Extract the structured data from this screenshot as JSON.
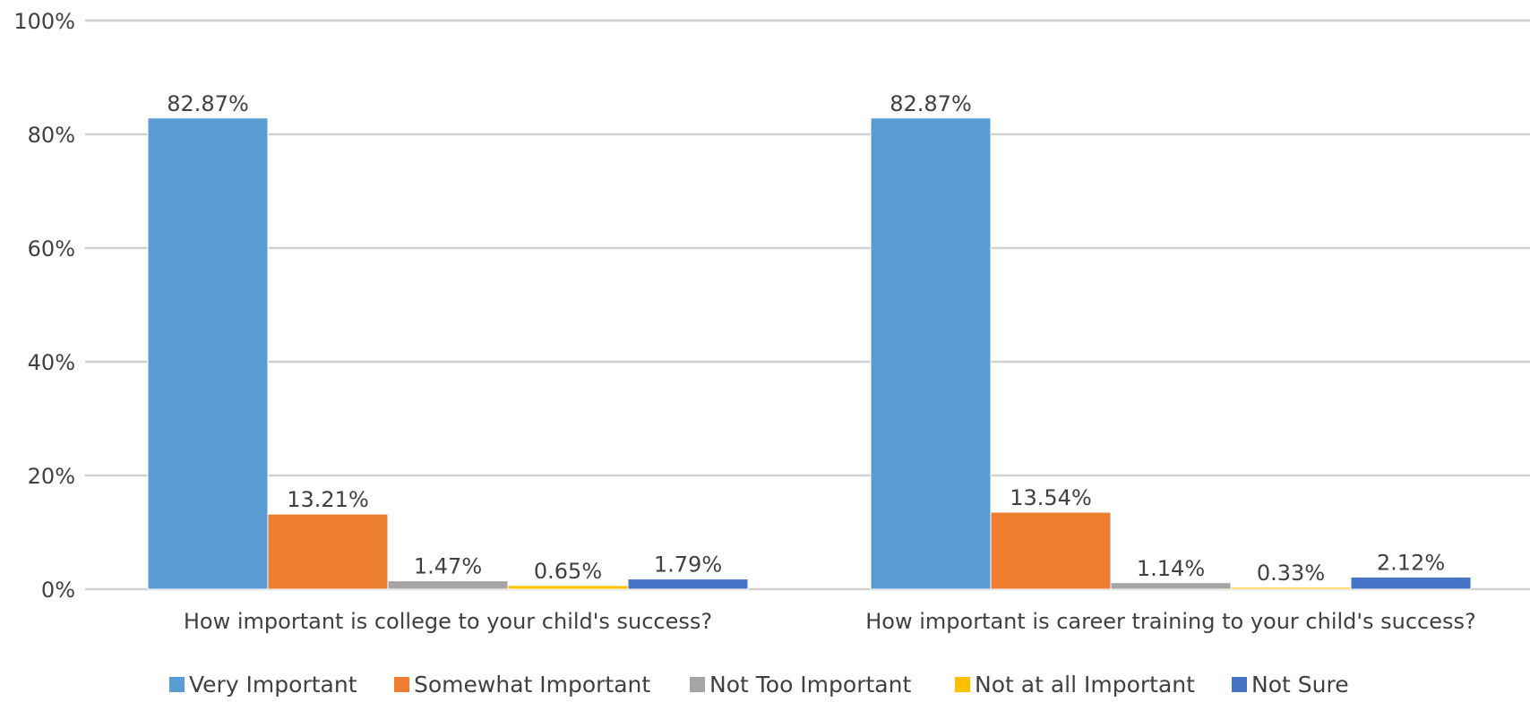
{
  "chart_data": {
    "type": "bar",
    "categories": [
      "How important is college to your child's success?",
      "How important is career training to your child's success?"
    ],
    "series": [
      {
        "name": "Very Important",
        "values": [
          82.87,
          82.87
        ],
        "labels": [
          "82.87%",
          "82.87%"
        ],
        "color": "#5b9bd5"
      },
      {
        "name": "Somewhat Important",
        "values": [
          13.21,
          13.54
        ],
        "labels": [
          "13.21%",
          "13.54%"
        ],
        "color": "#ed7d31"
      },
      {
        "name": "Not Too Important",
        "values": [
          1.47,
          1.14
        ],
        "labels": [
          "1.47%",
          "1.14%"
        ],
        "color": "#a5a5a5"
      },
      {
        "name": "Not at all Important",
        "values": [
          0.65,
          0.33
        ],
        "labels": [
          "0.65%",
          "0.33%"
        ],
        "color": "#ffc000"
      },
      {
        "name": "Not Sure",
        "values": [
          1.79,
          2.12
        ],
        "labels": [
          "1.79%",
          "2.12%"
        ],
        "color": "#4472c4"
      }
    ],
    "yticks": [
      0,
      20,
      40,
      60,
      80,
      100
    ],
    "ytick_labels": [
      "0%",
      "20%",
      "40%",
      "60%",
      "80%",
      "100%"
    ],
    "ylim": [
      0,
      100
    ],
    "grid": true,
    "legend": "bottom",
    "title": "",
    "xlabel": "",
    "ylabel": ""
  }
}
